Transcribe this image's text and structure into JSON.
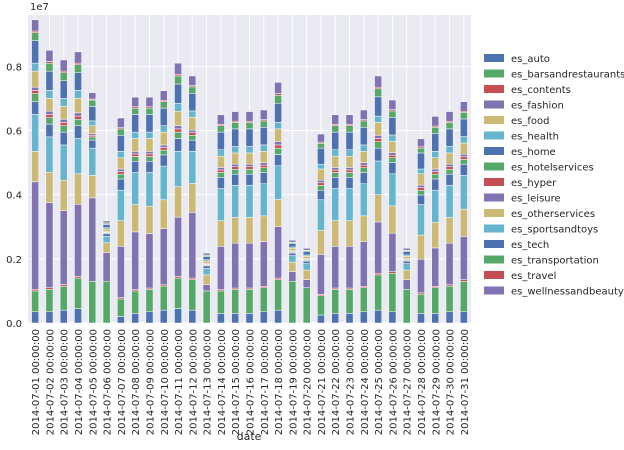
{
  "chart_data": {
    "type": "bar",
    "stacked": true,
    "xlabel": "date",
    "ylabel": "",
    "ylim": [
      0,
      9.6
    ],
    "y_ticks": [
      "0.0",
      "0.2",
      "0.4",
      "0.6",
      "0.8"
    ],
    "y_tick_values": [
      0,
      2,
      4,
      6,
      8
    ],
    "y_scale_label": "1e7",
    "grid": true,
    "legend_position": "right",
    "categories": [
      "2014-07-01 00:00:00",
      "2014-07-02 00:00:00",
      "2014-07-03 00:00:00",
      "2014-07-04 00:00:00",
      "2014-07-05 00:00:00",
      "2014-07-06 00:00:00",
      "2014-07-07 00:00:00",
      "2014-07-08 00:00:00",
      "2014-07-09 00:00:00",
      "2014-07-10 00:00:00",
      "2014-07-11 00:00:00",
      "2014-07-12 00:00:00",
      "2014-07-13 00:00:00",
      "2014-07-14 00:00:00",
      "2014-07-15 00:00:00",
      "2014-07-16 00:00:00",
      "2014-07-17 00:00:00",
      "2014-07-18 00:00:00",
      "2014-07-19 00:00:00",
      "2014-07-20 00:00:00",
      "2014-07-21 00:00:00",
      "2014-07-22 00:00:00",
      "2014-07-23 00:00:00",
      "2014-07-24 00:00:00",
      "2014-07-25 00:00:00",
      "2014-07-26 00:00:00",
      "2014-07-27 00:00:00",
      "2014-07-28 00:00:00",
      "2014-07-29 00:00:00",
      "2014-07-30 00:00:00",
      "2014-07-31 00:00:00"
    ],
    "series": [
      {
        "name": "es_auto",
        "color": "#4c72b0",
        "values": [
          0.35,
          0.35,
          0.4,
          0.45,
          0,
          0,
          0.2,
          0.3,
          0.35,
          0.4,
          0.45,
          0.4,
          0,
          0.3,
          0.3,
          0.3,
          0.35,
          0.4,
          0,
          0,
          0.25,
          0.3,
          0.3,
          0.35,
          0.4,
          0.35,
          0,
          0.3,
          0.3,
          0.35,
          0.35
        ]
      },
      {
        "name": "es_barsandrestaurants",
        "color": "#55a868",
        "values": [
          0.65,
          0.7,
          0.75,
          0.95,
          1.3,
          1.3,
          0.55,
          0.7,
          0.7,
          0.75,
          0.95,
          0.95,
          1.0,
          0.7,
          0.75,
          0.75,
          0.75,
          0.95,
          1.3,
          1.1,
          0.6,
          0.75,
          0.75,
          0.75,
          1.1,
          1.2,
          1.05,
          0.6,
          0.8,
          0.8,
          0.95
        ]
      },
      {
        "name": "es_contents",
        "color": "#c44e52",
        "values": [
          0.05,
          0.05,
          0.05,
          0.05,
          0,
          0,
          0.04,
          0.04,
          0.04,
          0.04,
          0.05,
          0.05,
          0,
          0.04,
          0.04,
          0.04,
          0.04,
          0.05,
          0,
          0,
          0.04,
          0.04,
          0.04,
          0.04,
          0.05,
          0.05,
          0,
          0.04,
          0.04,
          0.04,
          0.05
        ]
      },
      {
        "name": "es_fashion",
        "color": "#8172b2",
        "values": [
          3.35,
          2.65,
          2.3,
          2.25,
          2.6,
          0.9,
          1.6,
          1.8,
          1.7,
          1.75,
          1.85,
          2.05,
          0.2,
          1.35,
          1.4,
          1.4,
          1.4,
          1.6,
          0.3,
          0.25,
          1.25,
          1.3,
          1.3,
          1.4,
          1.6,
          1.2,
          0.3,
          1.05,
          1.2,
          1.3,
          1.35
        ]
      },
      {
        "name": "es_food",
        "color": "#ccb974",
        "values": [
          0.95,
          0.95,
          0.95,
          0.95,
          0.7,
          0.3,
          0.8,
          0.85,
          0.85,
          0.9,
          0.95,
          0.9,
          0.3,
          0.8,
          0.8,
          0.8,
          0.8,
          0.85,
          0.3,
          0.3,
          0.75,
          0.8,
          0.8,
          0.8,
          0.85,
          0.85,
          0.3,
          0.75,
          0.8,
          0.8,
          0.85
        ]
      },
      {
        "name": "es_health",
        "color": "#64b5cd",
        "values": [
          1.15,
          1.1,
          1.1,
          1.1,
          0.85,
          0.2,
          0.95,
          1.0,
          1.05,
          1.05,
          1.1,
          1.0,
          0.2,
          1.0,
          1.0,
          1.0,
          1.0,
          1.05,
          0.2,
          0.2,
          0.95,
          1.0,
          1.0,
          1.0,
          1.05,
          1.0,
          0.2,
          0.95,
          1.0,
          1.0,
          1.05
        ]
      },
      {
        "name": "es_home",
        "color": "#4c72b0",
        "values": [
          0.4,
          0.4,
          0.4,
          0.4,
          0.25,
          0.08,
          0.35,
          0.35,
          0.35,
          0.35,
          0.4,
          0.35,
          0.08,
          0.35,
          0.35,
          0.35,
          0.35,
          0.35,
          0.08,
          0.08,
          0.3,
          0.35,
          0.35,
          0.35,
          0.4,
          0.35,
          0.08,
          0.3,
          0.35,
          0.35,
          0.35
        ]
      },
      {
        "name": "es_hotelservices",
        "color": "#55a868",
        "values": [
          0.25,
          0.2,
          0.2,
          0.2,
          0.1,
          0.03,
          0.15,
          0.15,
          0.15,
          0.15,
          0.2,
          0.15,
          0.03,
          0.15,
          0.15,
          0.15,
          0.15,
          0.2,
          0.03,
          0.03,
          0.15,
          0.15,
          0.15,
          0.15,
          0.2,
          0.15,
          0.03,
          0.15,
          0.15,
          0.15,
          0.15
        ]
      },
      {
        "name": "es_hyper",
        "color": "#c44e52",
        "values": [
          0.1,
          0.1,
          0.1,
          0.1,
          0.05,
          0.02,
          0.08,
          0.08,
          0.08,
          0.08,
          0.1,
          0.08,
          0.02,
          0.08,
          0.08,
          0.08,
          0.08,
          0.1,
          0.02,
          0.02,
          0.08,
          0.08,
          0.08,
          0.08,
          0.1,
          0.08,
          0.02,
          0.08,
          0.08,
          0.08,
          0.08
        ]
      },
      {
        "name": "es_leisure",
        "color": "#8172b2",
        "values": [
          0.1,
          0.1,
          0.1,
          0.1,
          0.05,
          0.02,
          0.08,
          0.08,
          0.08,
          0.08,
          0.1,
          0.08,
          0.02,
          0.08,
          0.08,
          0.08,
          0.08,
          0.1,
          0.02,
          0.02,
          0.08,
          0.08,
          0.08,
          0.08,
          0.1,
          0.08,
          0.02,
          0.08,
          0.08,
          0.08,
          0.08
        ]
      },
      {
        "name": "es_otherservices",
        "color": "#ccb974",
        "values": [
          0.5,
          0.4,
          0.4,
          0.45,
          0.25,
          0.08,
          0.35,
          0.4,
          0.4,
          0.4,
          0.45,
          0.4,
          0.08,
          0.35,
          0.35,
          0.35,
          0.35,
          0.4,
          0.08,
          0.08,
          0.35,
          0.35,
          0.35,
          0.35,
          0.4,
          0.35,
          0.08,
          0.35,
          0.35,
          0.35,
          0.35
        ]
      },
      {
        "name": "es_sportsandtoys",
        "color": "#64b5cd",
        "values": [
          0.25,
          0.25,
          0.25,
          0.25,
          0.15,
          0.04,
          0.2,
          0.2,
          0.2,
          0.2,
          0.25,
          0.2,
          0.04,
          0.2,
          0.2,
          0.2,
          0.2,
          0.2,
          0.04,
          0.04,
          0.15,
          0.2,
          0.2,
          0.2,
          0.2,
          0.2,
          0.04,
          0.15,
          0.2,
          0.2,
          0.2
        ]
      },
      {
        "name": "es_tech",
        "color": "#4c72b0",
        "values": [
          0.7,
          0.6,
          0.55,
          0.55,
          0.45,
          0.1,
          0.5,
          0.55,
          0.55,
          0.55,
          0.6,
          0.55,
          0.1,
          0.55,
          0.55,
          0.55,
          0.55,
          0.6,
          0.1,
          0.1,
          0.5,
          0.55,
          0.55,
          0.55,
          0.6,
          0.55,
          0.1,
          0.5,
          0.55,
          0.55,
          0.55
        ]
      },
      {
        "name": "es_transportation",
        "color": "#55a868",
        "values": [
          0.25,
          0.25,
          0.25,
          0.25,
          0.2,
          0.04,
          0.2,
          0.2,
          0.2,
          0.2,
          0.25,
          0.2,
          0.04,
          0.2,
          0.2,
          0.2,
          0.2,
          0.25,
          0.04,
          0.04,
          0.15,
          0.2,
          0.2,
          0.2,
          0.25,
          0.2,
          0.04,
          0.15,
          0.2,
          0.2,
          0.2
        ]
      },
      {
        "name": "es_travel",
        "color": "#c44e52",
        "values": [
          0.05,
          0.05,
          0.05,
          0.05,
          0.03,
          0.01,
          0.04,
          0.04,
          0.04,
          0.04,
          0.05,
          0.04,
          0.01,
          0.04,
          0.04,
          0.04,
          0.04,
          0.05,
          0.01,
          0.01,
          0.04,
          0.04,
          0.04,
          0.04,
          0.05,
          0.04,
          0.01,
          0.04,
          0.04,
          0.04,
          0.04
        ]
      },
      {
        "name": "es_wellnessandbeauty",
        "color": "#8172b2",
        "values": [
          0.35,
          0.35,
          0.35,
          0.35,
          0.2,
          0.06,
          0.3,
          0.3,
          0.3,
          0.3,
          0.35,
          0.3,
          0.06,
          0.3,
          0.3,
          0.3,
          0.3,
          0.35,
          0.06,
          0.06,
          0.25,
          0.3,
          0.3,
          0.3,
          0.35,
          0.3,
          0.06,
          0.25,
          0.3,
          0.3,
          0.3
        ]
      }
    ]
  }
}
